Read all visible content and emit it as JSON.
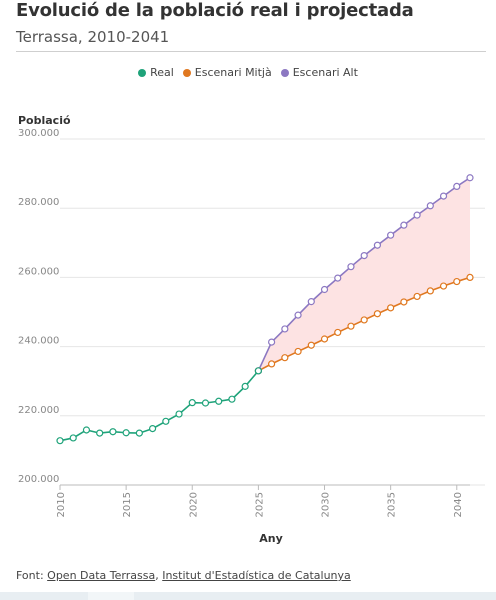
{
  "header": {
    "title": "Evolució de la població real i projectada",
    "subtitle": "Terrassa, 2010-2041"
  },
  "footer": {
    "prefix": "Font: ",
    "source1": "Open Data Terrassa",
    "separator": ", ",
    "source2": "Institut d'Estadística de Catalunya"
  },
  "colors": {
    "real": "#1fa37a",
    "mitja": "#e07820",
    "alt": "#8c78c2",
    "band": "#fde3e3",
    "grid": "#e6e6e6",
    "axis_text": "#888888"
  },
  "chart_data": {
    "type": "line",
    "title": "Evolució de la població real i projectada",
    "subtitle": "Terrassa, 2010-2041",
    "xlabel": "Any",
    "ylabel": "Població",
    "xlim": [
      2010,
      2041
    ],
    "ylim": [
      200000,
      300000
    ],
    "x_ticks": [
      2010,
      2015,
      2020,
      2025,
      2030,
      2035,
      2040
    ],
    "y_ticks": [
      200000,
      220000,
      240000,
      260000,
      280000,
      300000
    ],
    "y_tick_labels": [
      "200.000",
      "220.000",
      "240.000",
      "260.000",
      "280.000",
      "300.000"
    ],
    "legend_position": "top-center",
    "grid": true,
    "series": [
      {
        "name": "Real",
        "x": [
          2010,
          2011,
          2012,
          2013,
          2014,
          2015,
          2016,
          2017,
          2018,
          2019,
          2020,
          2021,
          2022,
          2023,
          2024,
          2025
        ],
        "values": [
          212800,
          213600,
          215900,
          215000,
          215400,
          215100,
          215000,
          216300,
          218400,
          220500,
          223800,
          223700,
          224200,
          224800,
          228500,
          233000
        ]
      },
      {
        "name": "Escenari Mitjà",
        "x": [
          2025,
          2026,
          2027,
          2028,
          2029,
          2030,
          2031,
          2032,
          2033,
          2034,
          2035,
          2036,
          2037,
          2038,
          2039,
          2040,
          2041
        ],
        "values": [
          233000,
          235000,
          236800,
          238600,
          240400,
          242200,
          244100,
          245900,
          247700,
          249500,
          251200,
          252900,
          254500,
          256100,
          257500,
          258800,
          260000
        ]
      },
      {
        "name": "Escenari Alt",
        "x": [
          2025,
          2026,
          2027,
          2028,
          2029,
          2030,
          2031,
          2032,
          2033,
          2034,
          2035,
          2036,
          2037,
          2038,
          2039,
          2040,
          2041
        ],
        "values": [
          233000,
          241300,
          245100,
          249100,
          253000,
          256500,
          259800,
          263100,
          266300,
          269300,
          272200,
          275100,
          278000,
          280700,
          283500,
          286300,
          288800
        ]
      }
    ]
  }
}
